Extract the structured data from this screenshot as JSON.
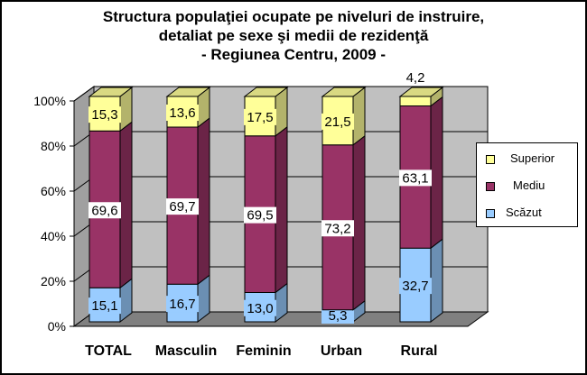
{
  "chart_data": {
    "type": "bar",
    "stacked": true,
    "three_d": true,
    "title": [
      "Structura populaţiei ocupate pe niveluri de instruire,",
      "detaliat pe sexe şi medii de rezidenţă",
      "- Regiunea Centru, 2009 -"
    ],
    "categories": [
      "TOTAL",
      "Masculin",
      "Feminin",
      "Urban",
      "Rural"
    ],
    "series": [
      {
        "name": "Scăzut",
        "values": [
          15.1,
          16.7,
          13.0,
          5.3,
          32.7
        ],
        "labels": [
          "15,1",
          "16,7",
          "13,0",
          "5,3",
          "32,7"
        ],
        "color": "#99CCFF"
      },
      {
        "name": "Mediu",
        "values": [
          69.6,
          69.7,
          69.5,
          73.2,
          63.1
        ],
        "labels": [
          "69,6",
          "69,7",
          "69,5",
          "73,2",
          "63,1"
        ],
        "color": "#993366"
      },
      {
        "name": "Superior",
        "values": [
          15.3,
          13.6,
          17.5,
          21.5,
          4.2
        ],
        "labels": [
          "15,3",
          "13,6",
          "17,5",
          "21,5",
          "4,2"
        ],
        "color": "#FFFF99"
      }
    ],
    "ylim": [
      0,
      100
    ],
    "yticks": [
      "0%",
      "20%",
      "40%",
      "60%",
      "80%",
      "100%"
    ],
    "grid": true,
    "legend_position": "right",
    "legend_order": [
      "Superior",
      "Mediu",
      "Scăzut"
    ],
    "colors": {
      "wall": "#C0C0C0",
      "floor": "#808080",
      "side_wall": "#A0A0A0"
    }
  }
}
